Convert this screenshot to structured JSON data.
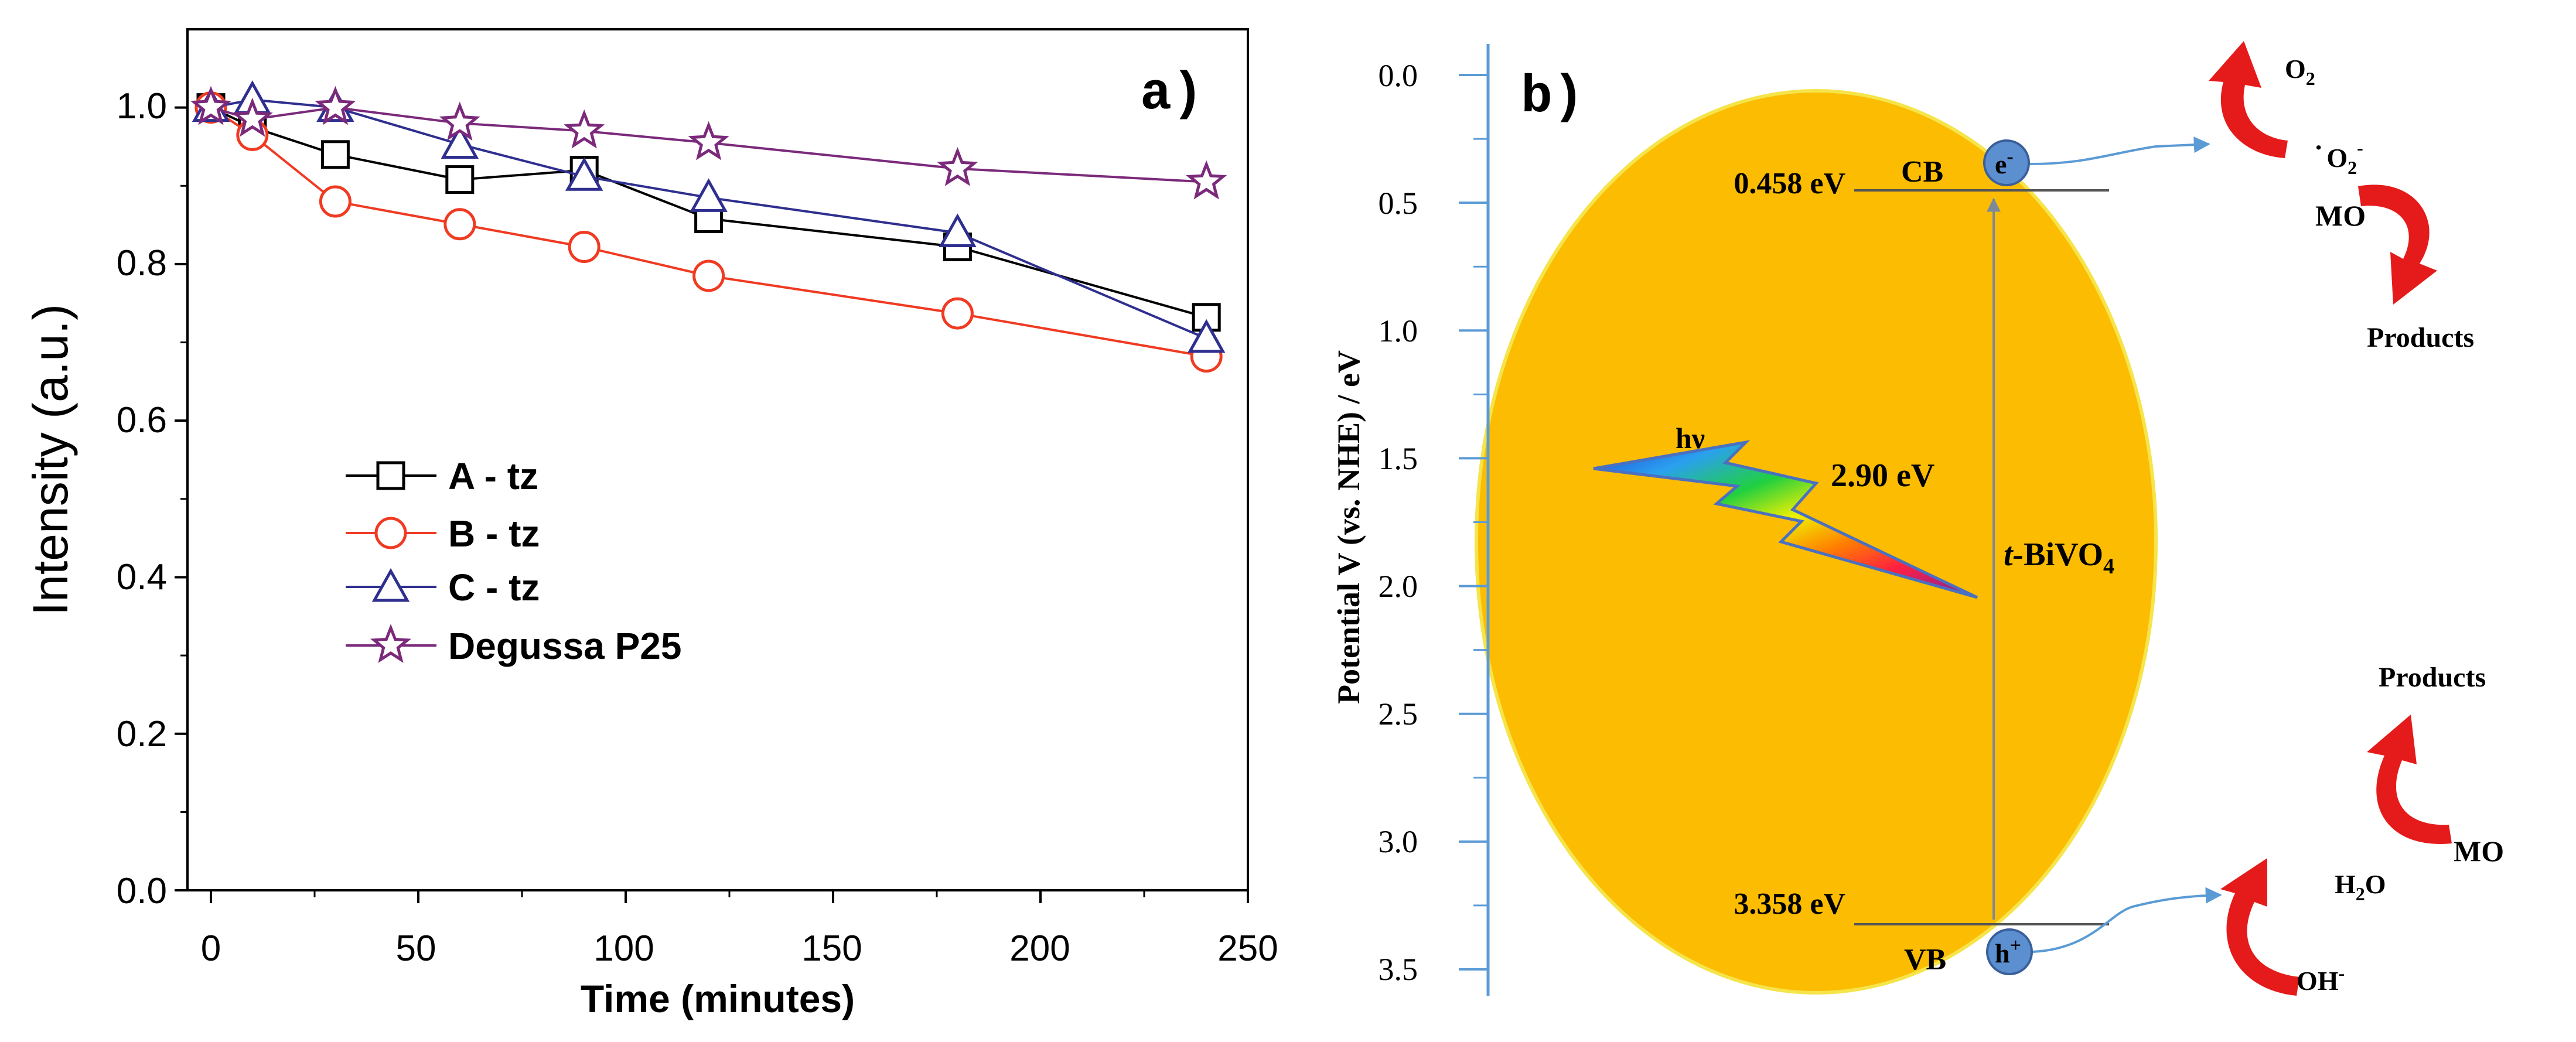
{
  "chart_data": [
    {
      "type": "line",
      "panel_label": "a)",
      "title": "",
      "xlabel": "Time (minutes)",
      "ylabel": "Intensity (a.u.)",
      "xlim": [
        -5,
        250
      ],
      "ylim": [
        0,
        1.1
      ],
      "x_ticks": [
        "0",
        "50",
        "100",
        "150",
        "200",
        "250"
      ],
      "y_ticks": [
        "0.0",
        "0.2",
        "0.4",
        "0.6",
        "0.8",
        "1.0"
      ],
      "legend_position": "center-left",
      "series": [
        {
          "name": "A - tz",
          "color": "#000000",
          "marker": "square",
          "x": [
            0,
            10,
            30,
            60,
            90,
            120,
            180,
            240
          ],
          "values": [
            1.0,
            0.975,
            0.94,
            0.908,
            0.92,
            0.858,
            0.822,
            0.732
          ]
        },
        {
          "name": "B - tz",
          "color": "#f03a22",
          "marker": "circle",
          "x": [
            0,
            10,
            30,
            60,
            90,
            120,
            180,
            240
          ],
          "values": [
            1.0,
            0.965,
            0.88,
            0.851,
            0.822,
            0.785,
            0.737,
            0.682
          ]
        },
        {
          "name": "C - tz",
          "color": "#2f2f8f",
          "marker": "triangle",
          "x": [
            0,
            10,
            30,
            60,
            90,
            120,
            180,
            240
          ],
          "values": [
            1.0,
            1.01,
            1.0,
            0.953,
            0.912,
            0.885,
            0.84,
            0.705
          ]
        },
        {
          "name": "Degussa P25",
          "color": "#7b2a7b",
          "marker": "star",
          "x": [
            0,
            10,
            30,
            60,
            90,
            120,
            180,
            240
          ],
          "values": [
            1.0,
            0.985,
            1.0,
            0.98,
            0.97,
            0.955,
            0.922,
            0.905
          ]
        }
      ]
    },
    {
      "type": "diagram",
      "panel_label": "b)",
      "axis_label": "Potential V (vs. NHE) / eV",
      "axis_range": [
        0.0,
        3.5
      ],
      "axis_ticks": [
        "0.0",
        "0.5",
        "1.0",
        "1.5",
        "2.0",
        "2.5",
        "3.0",
        "3.5"
      ],
      "cb": {
        "potential": 0.458,
        "label": "CB",
        "value_text": "0.458 eV",
        "carrier": "e",
        "carrier_sup": "-"
      },
      "vb": {
        "potential": 3.358,
        "label": "VB",
        "value_text": "3.358 eV",
        "carrier": "h",
        "carrier_sup": "+"
      },
      "band_gap_text": "2.90 eV",
      "light_text": "hν",
      "material_prefix": "t-",
      "material": "BiVO",
      "material_sub": "4",
      "reactions": {
        "o2": "O",
        "o2_sub": "2",
        "superoxide_dot": "·",
        "superoxide": "O",
        "superoxide_sub": "2",
        "superoxide_sup": "-",
        "mo_top": "MO",
        "products_top": "Products",
        "products_bottom": "Products",
        "mo_bottom": "MO",
        "h2o": "H",
        "h2o_sub": "2",
        "h2o_tail": "O",
        "oh": "OH",
        "oh_sup": "-"
      },
      "colors": {
        "circle": "#fcbc02",
        "circle_edge": "#f5e44a",
        "axis": "#5b9bd5",
        "arrow": "#e51b1b",
        "carrier": "#5b8fd0"
      }
    }
  ]
}
